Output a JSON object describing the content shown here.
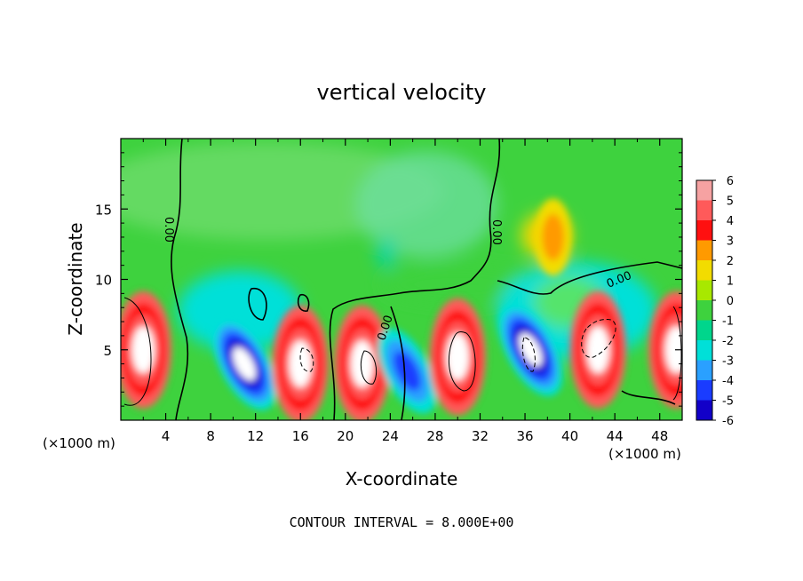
{
  "chart_data": {
    "type": "heatmap",
    "title": "vertical velocity",
    "xlabel": "X-coordinate",
    "ylabel": "Z-coordinate",
    "x_units_left": "(×1000 m)",
    "x_units_right": "(×1000 m)",
    "xlim": [
      0,
      50
    ],
    "ylim": [
      0,
      20
    ],
    "x_ticks": [
      "4",
      "8",
      "12",
      "16",
      "20",
      "24",
      "28",
      "32",
      "36",
      "40",
      "44",
      "48"
    ],
    "x_tick_values": [
      4,
      8,
      12,
      16,
      20,
      24,
      28,
      32,
      36,
      40,
      44,
      48
    ],
    "y_ticks": [
      "5",
      "10",
      "15"
    ],
    "y_tick_values": [
      5,
      10,
      15
    ],
    "colorbar": {
      "labels": [
        "6",
        "5",
        "4",
        "3",
        "2",
        "1",
        "0",
        "-1",
        "-2",
        "-3",
        "-4",
        "-5",
        "-6"
      ],
      "range": [
        -6,
        6
      ],
      "colors": [
        "#f6a2a2",
        "#ff5a5a",
        "#ff1010",
        "#ff9a00",
        "#f2dc00",
        "#a8e800",
        "#3ed23e",
        "#00d68c",
        "#00e0d8",
        "#2aa0ff",
        "#1a3cff",
        "#1200c8",
        "#7000b0"
      ]
    },
    "contour_labels": [
      "0.00",
      "0.00",
      "0.00",
      "0.00"
    ],
    "contour_interval": "CONTOUR INTERVAL = 8.000E+00",
    "features": [
      {
        "x": 2,
        "z": 5,
        "value": 8
      },
      {
        "x": 11,
        "z": 4,
        "value": -6
      },
      {
        "x": 16,
        "z": 4,
        "value": 8
      },
      {
        "x": 21.5,
        "z": 4,
        "value": 8
      },
      {
        "x": 25.5,
        "z": 3.5,
        "value": -5
      },
      {
        "x": 30,
        "z": 4.5,
        "value": 8
      },
      {
        "x": 36.5,
        "z": 5,
        "value": -6
      },
      {
        "x": 42.5,
        "z": 5,
        "value": 8
      },
      {
        "x": 49.5,
        "z": 5,
        "value": 8
      },
      {
        "x": 38.5,
        "z": 13,
        "value": 3
      }
    ]
  }
}
